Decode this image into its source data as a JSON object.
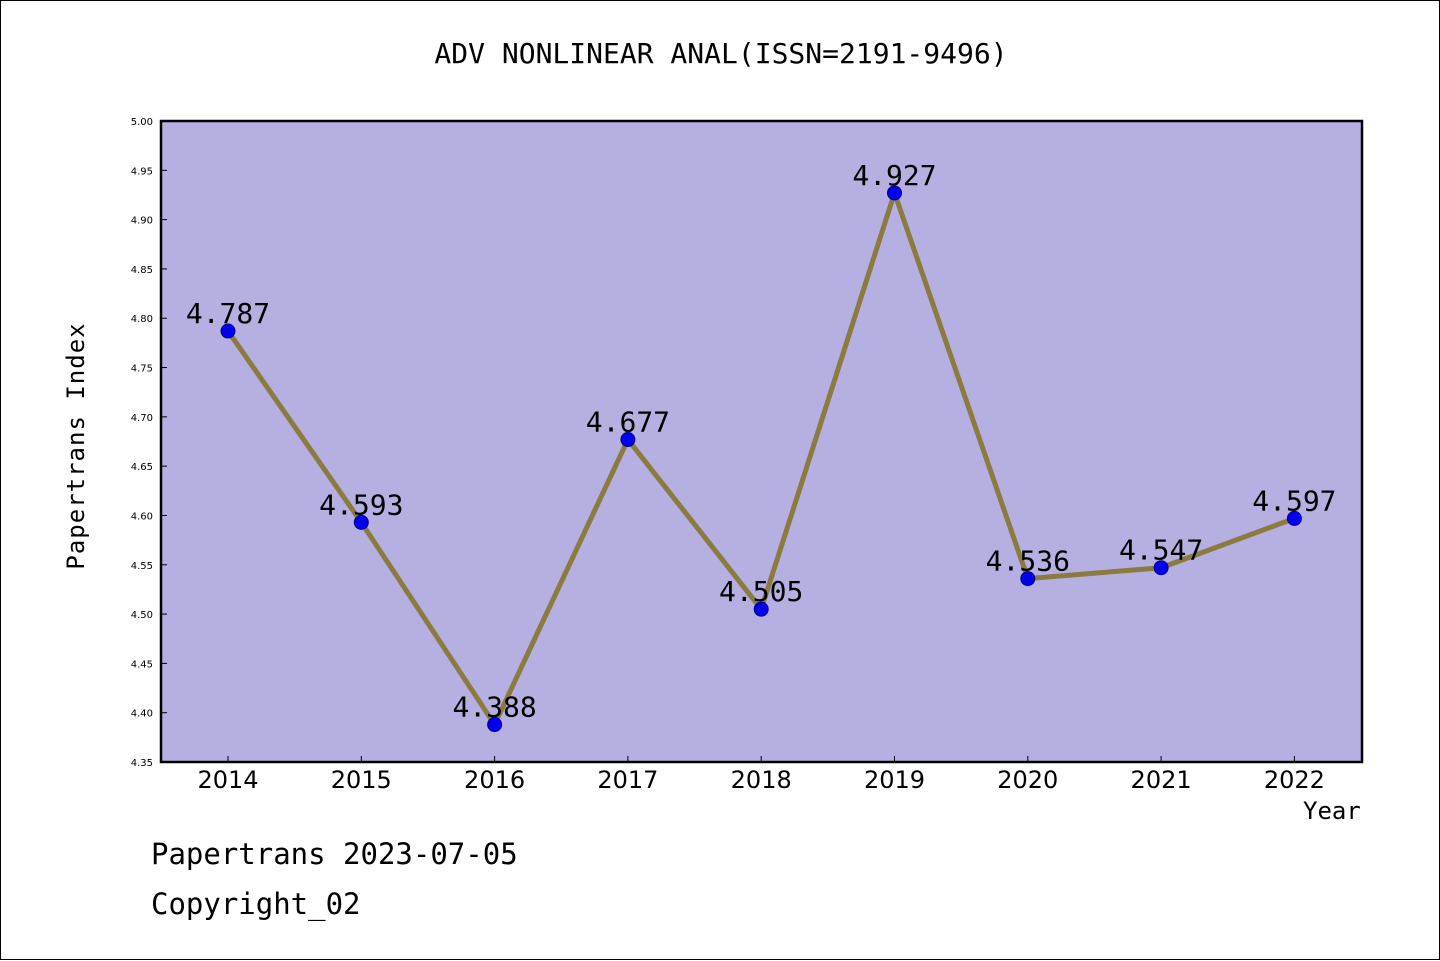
{
  "title": "ADV NONLINEAR ANAL(ISSN=2191-9496)",
  "footer": {
    "line1": "Papertrans 2023-07-05",
    "line2": "Copyright_02"
  },
  "colors": {
    "plot_background": "#b5afe2",
    "line": "#8b7b3e",
    "marker": "#0000ee",
    "marker_edge": "#00008b"
  },
  "chart_data": {
    "type": "line",
    "title": "ADV NONLINEAR ANAL(ISSN=2191-9496)",
    "xlabel": "Year",
    "ylabel": "Papertrans Index",
    "categories": [
      "2014",
      "2015",
      "2016",
      "2017",
      "2018",
      "2019",
      "2020",
      "2021",
      "2022"
    ],
    "series": [
      {
        "values": [
          4.787,
          4.593,
          4.388,
          4.677,
          4.505,
          4.927,
          4.536,
          4.547,
          4.597
        ],
        "labels": [
          "4.787",
          "4.593",
          "4.388",
          "4.677",
          "4.505",
          "4.927",
          "4.536",
          "4.547",
          "4.597"
        ]
      }
    ],
    "ylim": [
      4.35,
      5.0
    ],
    "yticks": [
      "4.35",
      "4.40",
      "4.45",
      "4.50",
      "4.55",
      "4.60",
      "4.65",
      "4.70",
      "4.75",
      "4.80",
      "4.85",
      "4.90",
      "4.95",
      "5.00"
    ],
    "grid": false,
    "legend": "none"
  }
}
